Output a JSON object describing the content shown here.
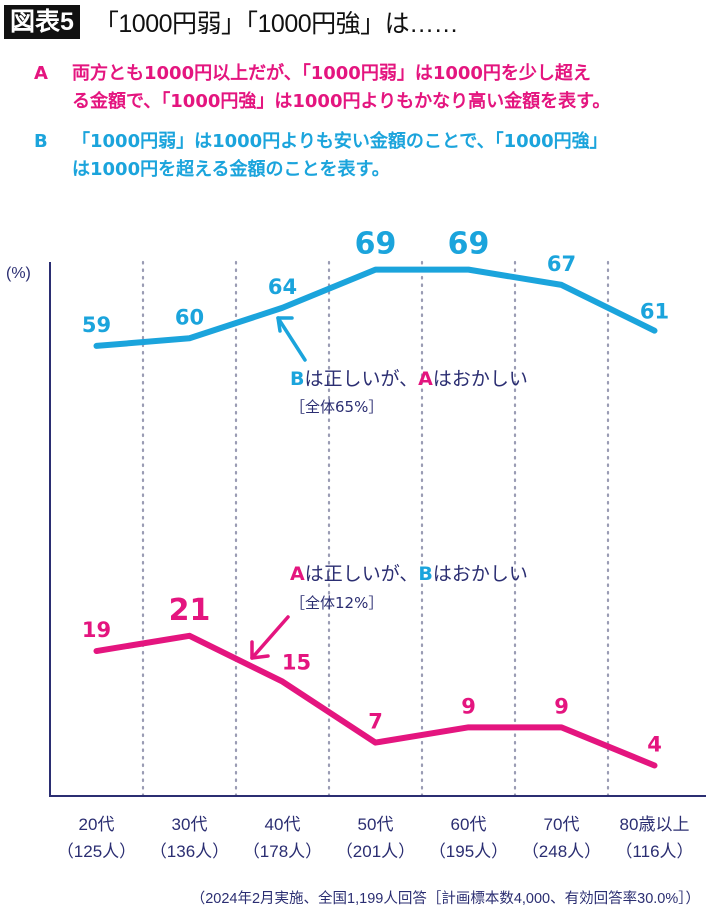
{
  "header": {
    "badge": "図表5",
    "title": "「1000円弱」「1000円強」は……"
  },
  "options": {
    "a": {
      "key": "A",
      "line1": "両方とも1000円以上だが、「1000円弱」は1000円を少し超え",
      "line2": "る金額で、「1000円強」は1000円よりもかなり高い金額を表す。"
    },
    "b": {
      "key": "B",
      "line1": "「1000円弱」は1000円よりも安い金額のことで、「1000円強」",
      "line2": "は1000円を超える金額のことを表す。"
    }
  },
  "colors": {
    "magenta": "#e4157f",
    "cyan": "#1ba4dc",
    "navy": "#2b2e72",
    "grid": "#9a9cb4"
  },
  "chart_data": {
    "type": "line",
    "title": "「1000円弱」「1000円強」は……",
    "ylabel": "(%)",
    "xlabel": "",
    "ylim": [
      0,
      70
    ],
    "grid": "vertical dotted separators between categories",
    "categories": [
      "20代",
      "30代",
      "40代",
      "50代",
      "60代",
      "70代",
      "80歳以上"
    ],
    "category_counts": [
      "（125人）",
      "（136人）",
      "（178人）",
      "（201人）",
      "（195人）",
      "（248人）",
      "（116人）"
    ],
    "series": [
      {
        "name": "Bは正しいが、Aはおかしい",
        "total_label": "［全体65%］",
        "color": "#1ba4dc",
        "values": [
          59,
          60,
          64,
          69,
          69,
          67,
          61
        ],
        "highlight": [
          false,
          false,
          false,
          true,
          true,
          false,
          false
        ]
      },
      {
        "name": "Aは正しいが、Bはおかしい",
        "total_label": "［全体12%］",
        "color": "#e4157f",
        "values": [
          19,
          21,
          15,
          7,
          9,
          9,
          4
        ],
        "highlight": [
          false,
          true,
          false,
          false,
          false,
          false,
          false
        ]
      }
    ],
    "annotations": [
      {
        "series": 0,
        "parts": [
          {
            "text": "B",
            "color": "cyan"
          },
          {
            "text": "は正しいが、",
            "color": "navy"
          },
          {
            "text": "A",
            "color": "magenta"
          },
          {
            "text": "はおかしい",
            "color": "navy"
          }
        ],
        "sub": "［全体65%］"
      },
      {
        "series": 1,
        "parts": [
          {
            "text": "A",
            "color": "magenta"
          },
          {
            "text": "は正しいが、",
            "color": "navy"
          },
          {
            "text": "B",
            "color": "cyan"
          },
          {
            "text": "はおかしい",
            "color": "navy"
          }
        ],
        "sub": "［全体12%］"
      }
    ]
  },
  "footnote": "（2024年2月実施、全国1,199人回答［計画標本数4,000、有効回答率30.0%］）"
}
